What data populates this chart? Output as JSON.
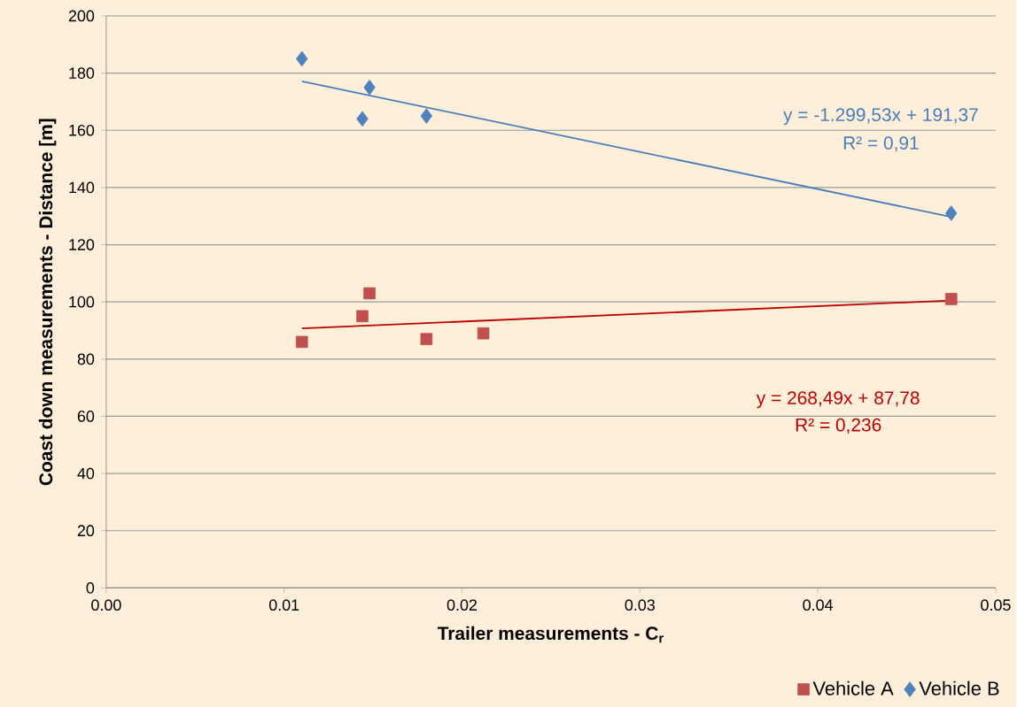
{
  "chart_data": {
    "type": "scatter",
    "xlabel": "Trailer measurements - C$_{r}$",
    "ylabel": "Coast down measurements - Distance [m]",
    "series": [
      {
        "name": "Vehicle A",
        "marker": "square",
        "color": "#c0504d",
        "x": [
          0.011,
          0.0144,
          0.0148,
          0.018,
          0.0212,
          0.0475
        ],
        "values": [
          86,
          95,
          103,
          87,
          89,
          101
        ]
      },
      {
        "name": "Vehicle B",
        "marker": "diamond",
        "color": "#4f81bd",
        "x": [
          0.011,
          0.0148,
          0.0144,
          0.018,
          0.0475
        ],
        "values": [
          185,
          175,
          164,
          165,
          131
        ]
      },
      {
        "type": "line",
        "marker": "none",
        "color": "#c00000",
        "x": [
          0.011,
          0.0475
        ],
        "values": [
          90.7,
          100.5
        ]
      },
      {
        "type": "line",
        "marker": "none",
        "color": "#4a7ebb",
        "x": [
          0.011,
          0.0475
        ],
        "values": [
          177.1,
          129.7
        ]
      }
    ],
    "annotations": [
      "y = -1.299,53x + 191,37",
      "R² = 0,91",
      "y = 268,49x + 87,78",
      "R² = 0,236"
    ],
    "xlim": [
      0,
      0.05
    ],
    "xticks": [
      {
        "value": 0,
        "label": "0.00"
      },
      {
        "value": 0.01,
        "label": "0.01"
      },
      {
        "value": 0.02,
        "label": "0.02"
      },
      {
        "value": 0.03,
        "label": "0.03"
      },
      {
        "value": 0.04,
        "label": "0.04"
      },
      {
        "value": 0.05,
        "label": "0.05"
      }
    ],
    "ylim": [
      0,
      200
    ],
    "yticks": [
      0,
      20,
      40,
      60,
      80,
      100,
      120,
      140,
      160,
      180,
      200
    ],
    "grid": "y",
    "legend": "bottom right"
  }
}
